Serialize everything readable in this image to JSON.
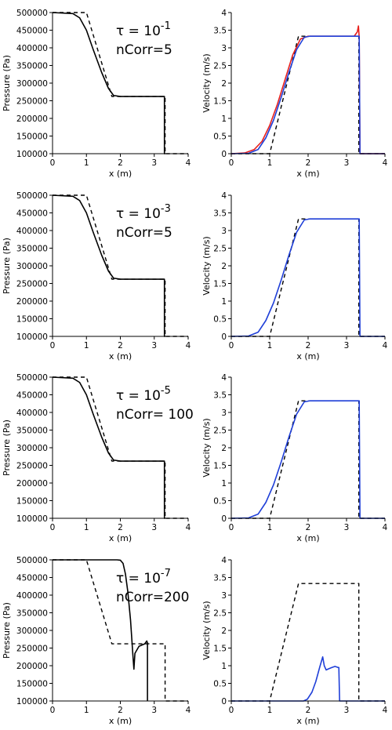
{
  "chart_data": [
    {
      "type": "line",
      "row": 0,
      "xlabel": "x (m)",
      "ylabel": "Pressure (Pa)",
      "xlim": [
        0,
        4
      ],
      "ylim": [
        100000,
        500000
      ],
      "xticks": [
        "0",
        "1",
        "2",
        "3",
        "4"
      ],
      "yticks": [
        "100000",
        "150000",
        "200000",
        "250000",
        "300000",
        "350000",
        "400000",
        "450000",
        "500000"
      ],
      "annotation": {
        "tau_base": "τ = 10",
        "tau_exp": "-1",
        "ncorr": "nCorr=5"
      },
      "series": [
        {
          "style": "dashed",
          "color": "#000000",
          "x": [
            0,
            1.0,
            1.75,
            3.32,
            3.32,
            4
          ],
          "y": [
            500000,
            500000,
            262000,
            262000,
            100000,
            100000
          ]
        },
        {
          "style": "solid",
          "color": "#000000",
          "x": [
            0,
            0.6,
            0.8,
            1.0,
            1.2,
            1.45,
            1.65,
            1.8,
            2.0,
            3.3,
            3.3,
            3.33
          ],
          "y": [
            500000,
            497000,
            485000,
            450000,
            395000,
            330000,
            285000,
            265000,
            262000,
            262000,
            100000,
            100000
          ]
        }
      ]
    },
    {
      "type": "line",
      "row": 0,
      "xlabel": "x (m)",
      "ylabel": "Velocity (m/s)",
      "xlim": [
        0,
        4
      ],
      "ylim": [
        0,
        4
      ],
      "xticks": [
        "0",
        "1",
        "2",
        "3",
        "4"
      ],
      "yticks": [
        "0",
        "0.5",
        "1",
        "1.5",
        "2",
        "2.5",
        "3",
        "3.5",
        "4"
      ],
      "series": [
        {
          "style": "dashed",
          "color": "#000000",
          "x": [
            0,
            1.0,
            1.75,
            3.32,
            3.32,
            4
          ],
          "y": [
            0,
            0,
            3.33,
            3.33,
            0,
            0
          ]
        },
        {
          "style": "solid",
          "color": "#e8211d",
          "x": [
            0,
            0.35,
            0.6,
            0.8,
            1.0,
            1.2,
            1.4,
            1.6,
            1.8,
            2.0,
            3.2,
            3.28,
            3.31,
            3.33,
            3.35,
            4
          ],
          "y": [
            0,
            0.02,
            0.12,
            0.35,
            0.8,
            1.4,
            2.1,
            2.8,
            3.25,
            3.33,
            3.33,
            3.45,
            3.62,
            3.3,
            0,
            0
          ]
        },
        {
          "style": "solid",
          "color": "#1f3fd8",
          "x": [
            0,
            0.45,
            0.7,
            0.9,
            1.1,
            1.3,
            1.5,
            1.7,
            1.9,
            2.05,
            3.3,
            3.33,
            3.35,
            4
          ],
          "y": [
            0,
            0.01,
            0.12,
            0.45,
            0.95,
            1.6,
            2.3,
            2.95,
            3.3,
            3.33,
            3.33,
            3.33,
            0,
            0
          ]
        }
      ]
    },
    {
      "type": "line",
      "row": 1,
      "xlabel": "x (m)",
      "ylabel": "Pressure (Pa)",
      "xlim": [
        0,
        4
      ],
      "ylim": [
        100000,
        500000
      ],
      "xticks": [
        "0",
        "1",
        "2",
        "3",
        "4"
      ],
      "yticks": [
        "100000",
        "150000",
        "200000",
        "250000",
        "300000",
        "350000",
        "400000",
        "450000",
        "500000"
      ],
      "annotation": {
        "tau_base": "τ = 10",
        "tau_exp": "-3",
        "ncorr": "nCorr=5"
      },
      "series": [
        {
          "style": "dashed",
          "color": "#000000",
          "x": [
            0,
            1.0,
            1.75,
            3.32,
            3.32,
            4
          ],
          "y": [
            500000,
            500000,
            262000,
            262000,
            100000,
            100000
          ]
        },
        {
          "style": "solid",
          "color": "#000000",
          "x": [
            0,
            0.6,
            0.8,
            1.0,
            1.2,
            1.45,
            1.65,
            1.8,
            2.0,
            3.3,
            3.3,
            3.33
          ],
          "y": [
            500000,
            497000,
            485000,
            450000,
            395000,
            330000,
            285000,
            265000,
            262000,
            262000,
            100000,
            100000
          ]
        }
      ]
    },
    {
      "type": "line",
      "row": 1,
      "xlabel": "x (m)",
      "ylabel": "Velocity (m/s)",
      "xlim": [
        0,
        4
      ],
      "ylim": [
        0,
        4
      ],
      "xticks": [
        "0",
        "1",
        "2",
        "3",
        "4"
      ],
      "yticks": [
        "0",
        "0.5",
        "1",
        "1.5",
        "2",
        "2.5",
        "3",
        "3.5",
        "4"
      ],
      "series": [
        {
          "style": "dashed",
          "color": "#000000",
          "x": [
            0,
            1.0,
            1.75,
            3.32,
            3.32,
            4
          ],
          "y": [
            0,
            0,
            3.33,
            3.33,
            0,
            0
          ]
        },
        {
          "style": "solid",
          "color": "#1f3fd8",
          "x": [
            0,
            0.45,
            0.7,
            0.9,
            1.1,
            1.3,
            1.5,
            1.7,
            1.9,
            2.05,
            3.3,
            3.33,
            3.35,
            4
          ],
          "y": [
            0,
            0.01,
            0.12,
            0.45,
            0.95,
            1.6,
            2.3,
            2.95,
            3.3,
            3.33,
            3.33,
            3.33,
            0,
            0
          ]
        }
      ]
    },
    {
      "type": "line",
      "row": 2,
      "xlabel": "x (m)",
      "ylabel": "Pressure (Pa)",
      "xlim": [
        0,
        4
      ],
      "ylim": [
        100000,
        500000
      ],
      "xticks": [
        "0",
        "1",
        "2",
        "3",
        "4"
      ],
      "yticks": [
        "100000",
        "150000",
        "200000",
        "250000",
        "300000",
        "350000",
        "400000",
        "450000",
        "500000"
      ],
      "annotation": {
        "tau_base": "τ = 10",
        "tau_exp": "-5",
        "ncorr": "nCorr= 100"
      },
      "series": [
        {
          "style": "dashed",
          "color": "#000000",
          "x": [
            0,
            1.0,
            1.75,
            3.32,
            3.32,
            4
          ],
          "y": [
            500000,
            500000,
            262000,
            262000,
            100000,
            100000
          ]
        },
        {
          "style": "solid",
          "color": "#000000",
          "x": [
            0,
            0.6,
            0.8,
            1.0,
            1.2,
            1.45,
            1.65,
            1.8,
            2.0,
            3.3,
            3.3,
            3.33
          ],
          "y": [
            500000,
            497000,
            485000,
            450000,
            395000,
            330000,
            285000,
            265000,
            262000,
            262000,
            100000,
            100000
          ]
        }
      ]
    },
    {
      "type": "line",
      "row": 2,
      "xlabel": "x (m)",
      "ylabel": "Velocity (m/s)",
      "xlim": [
        0,
        4
      ],
      "ylim": [
        0,
        4
      ],
      "xticks": [
        "0",
        "1",
        "2",
        "3",
        "4"
      ],
      "yticks": [
        "0",
        "0.5",
        "1",
        "1.5",
        "2",
        "2.5",
        "3",
        "3.5",
        "4"
      ],
      "series": [
        {
          "style": "dashed",
          "color": "#000000",
          "x": [
            0,
            1.0,
            1.75,
            3.32,
            3.32,
            4
          ],
          "y": [
            0,
            0,
            3.33,
            3.33,
            0,
            0
          ]
        },
        {
          "style": "solid",
          "color": "#1f3fd8",
          "x": [
            0,
            0.45,
            0.7,
            0.9,
            1.1,
            1.3,
            1.5,
            1.7,
            1.9,
            2.05,
            3.3,
            3.33,
            3.35,
            4
          ],
          "y": [
            0,
            0.01,
            0.12,
            0.45,
            0.95,
            1.6,
            2.3,
            2.95,
            3.3,
            3.33,
            3.33,
            3.33,
            0,
            0
          ]
        }
      ]
    },
    {
      "type": "line",
      "row": 3,
      "xlabel": "x (m)",
      "ylabel": "Pressure (Pa)",
      "xlim": [
        0,
        4
      ],
      "ylim": [
        100000,
        500000
      ],
      "xticks": [
        "0",
        "1",
        "2",
        "3",
        "4"
      ],
      "yticks": [
        "100000",
        "150000",
        "200000",
        "250000",
        "300000",
        "350000",
        "400000",
        "450000",
        "500000"
      ],
      "annotation": {
        "tau_base": "τ = 10",
        "tau_exp": "-7",
        "ncorr": "nCorr=200"
      },
      "series": [
        {
          "style": "dashed",
          "color": "#000000",
          "x": [
            0,
            1.0,
            1.75,
            3.32,
            3.32,
            4
          ],
          "y": [
            500000,
            500000,
            262000,
            262000,
            100000,
            100000
          ]
        },
        {
          "style": "solid",
          "color": "#000000",
          "x": [
            0,
            1.9,
            2.0,
            2.08,
            2.15,
            2.22,
            2.3,
            2.37,
            2.4,
            2.43,
            2.55,
            2.72,
            2.78,
            2.8,
            2.8
          ],
          "y": [
            500000,
            500000,
            499000,
            490000,
            460000,
            410000,
            330000,
            230000,
            190000,
            235000,
            255000,
            262000,
            270000,
            265000,
            100000
          ]
        }
      ]
    },
    {
      "type": "line",
      "row": 3,
      "xlabel": "x (m)",
      "ylabel": "Velocity (m/s)",
      "xlim": [
        0,
        4
      ],
      "ylim": [
        0,
        4
      ],
      "xticks": [
        "0",
        "1",
        "2",
        "3",
        "4"
      ],
      "yticks": [
        "0",
        "0.5",
        "1",
        "1.5",
        "2",
        "2.5",
        "3",
        "3.5",
        "4"
      ],
      "series": [
        {
          "style": "dashed",
          "color": "#000000",
          "x": [
            0,
            1.0,
            1.75,
            3.32,
            3.32,
            4
          ],
          "y": [
            0,
            0,
            3.33,
            3.33,
            0,
            0
          ]
        },
        {
          "style": "solid",
          "color": "#1f3fd8",
          "x": [
            0,
            1.88,
            1.98,
            2.1,
            2.2,
            2.3,
            2.38,
            2.42,
            2.47,
            2.55,
            2.62,
            2.7,
            2.78,
            2.8,
            2.82,
            4
          ],
          "y": [
            0,
            0,
            0.05,
            0.25,
            0.55,
            0.95,
            1.25,
            1.0,
            0.88,
            0.92,
            0.95,
            0.98,
            0.95,
            0.95,
            0,
            0
          ]
        }
      ]
    }
  ]
}
